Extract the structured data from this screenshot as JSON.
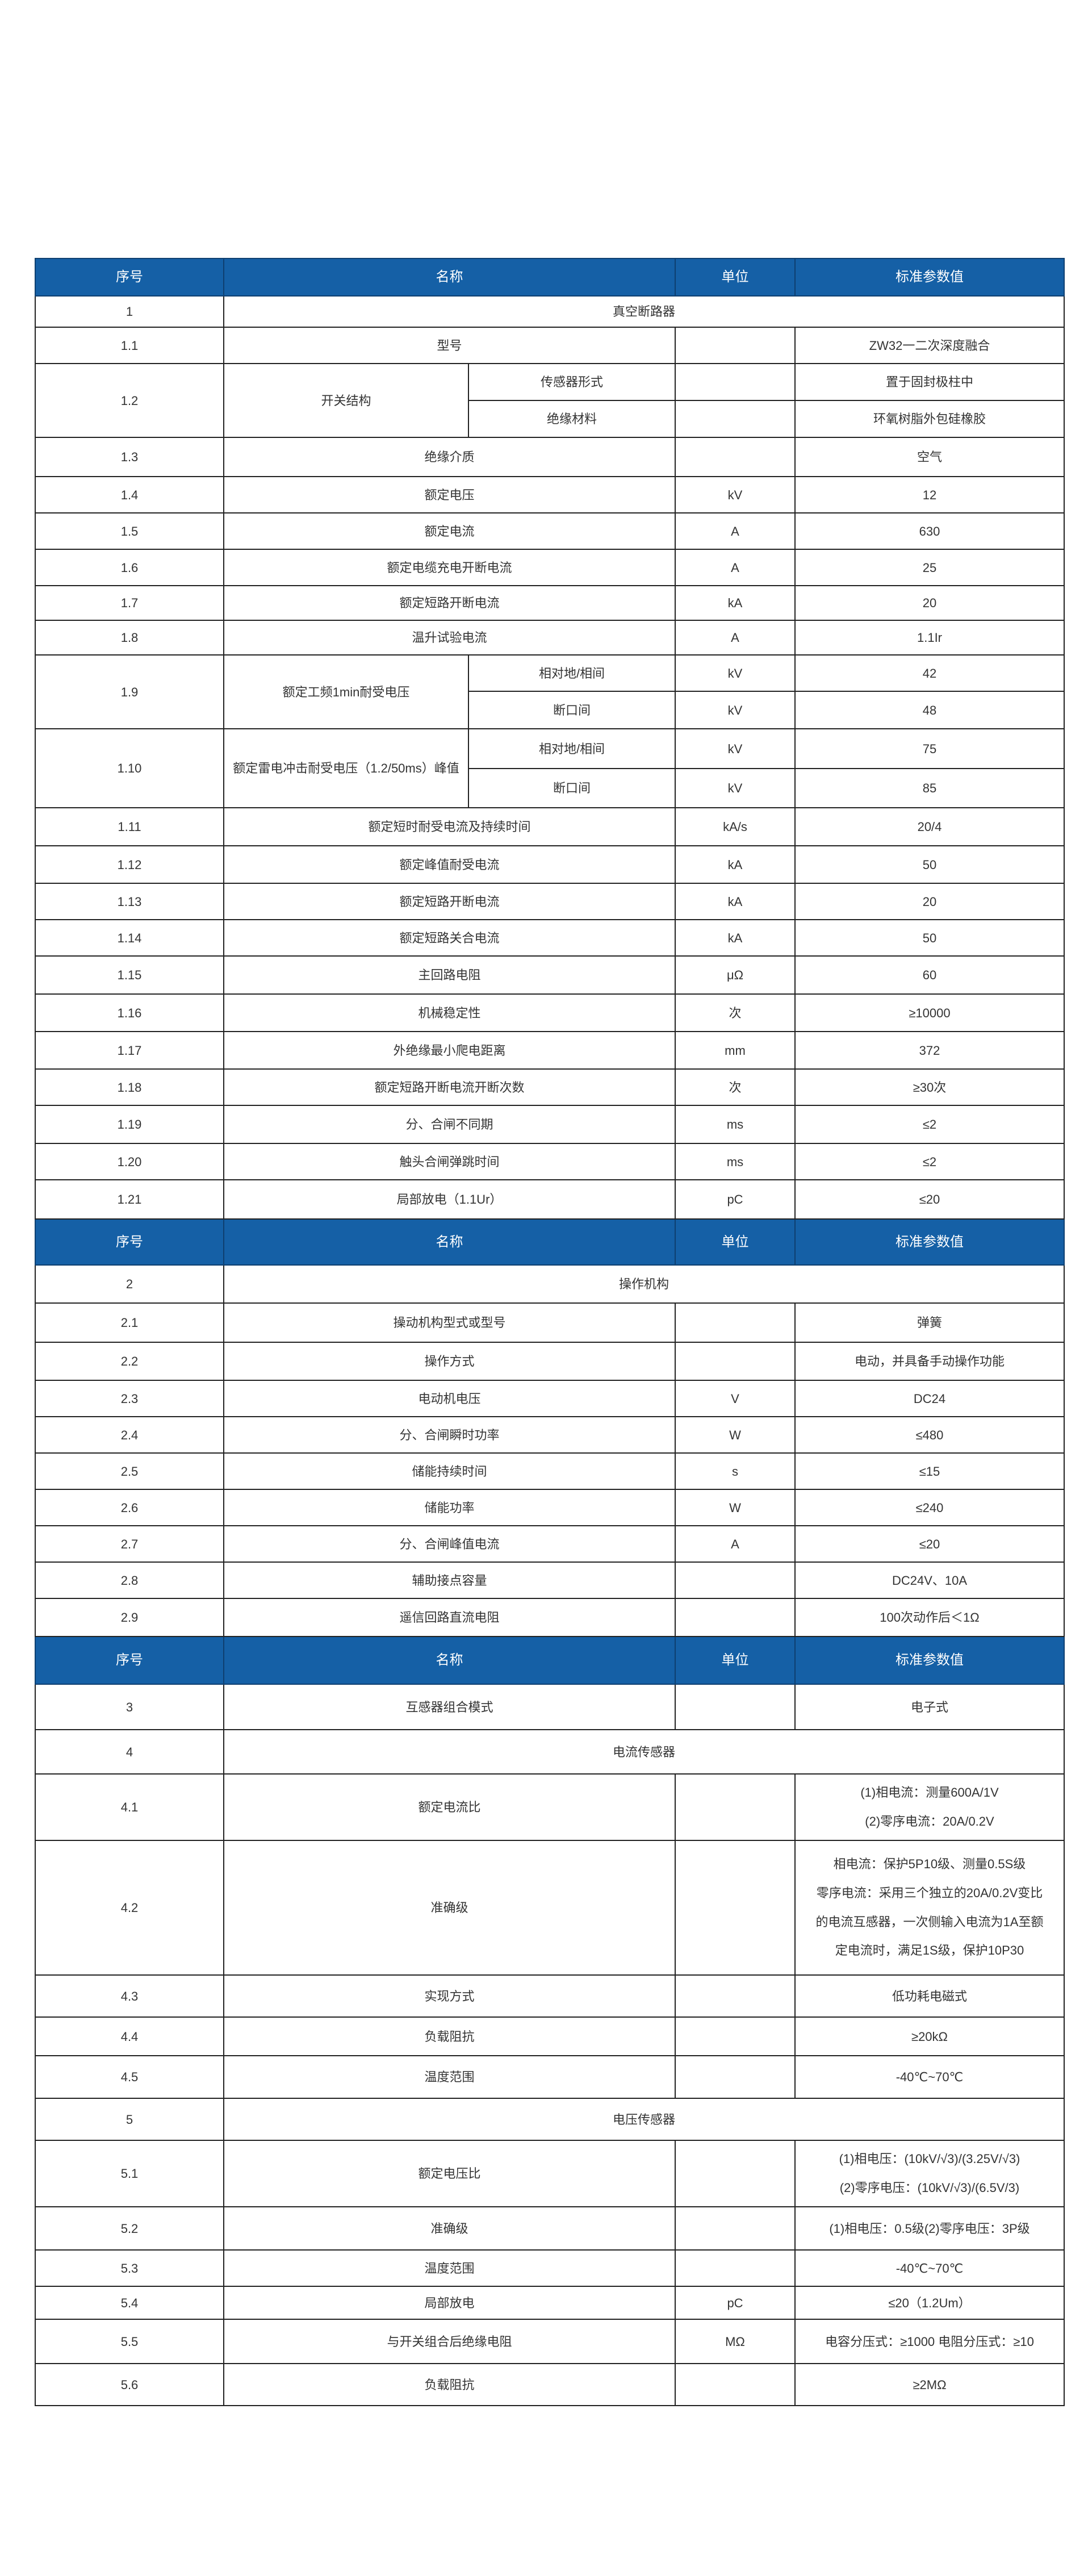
{
  "colors": {
    "header_bg": "#1560a6",
    "header_text": "#ffffff",
    "border": "#222222"
  },
  "rows": [
    {
      "type": "header",
      "no": "序号",
      "name": "名称",
      "unit": "单位",
      "value": "标准参数值"
    },
    {
      "type": "section",
      "no": "1",
      "name": "真空断路器"
    },
    {
      "type": "item",
      "no": "1.1",
      "name": "型号",
      "unit": "",
      "value": "ZW32一二次深度融合"
    },
    {
      "type": "group",
      "no": "1.2",
      "name": "开关结构",
      "subs": [
        {
          "label": "传感器形式",
          "unit": "",
          "value": "置于固封极柱中"
        },
        {
          "label": "绝缘材料",
          "unit": "",
          "value": "环氧树脂外包硅橡胶"
        }
      ]
    },
    {
      "type": "item",
      "no": "1.3",
      "name": "绝缘介质",
      "unit": "",
      "value": "空气"
    },
    {
      "type": "item",
      "no": "1.4",
      "name": "额定电压",
      "unit": "kV",
      "value": "12"
    },
    {
      "type": "item",
      "no": "1.5",
      "name": "额定电流",
      "unit": "A",
      "value": "630"
    },
    {
      "type": "item",
      "no": "1.6",
      "name": "额定电缆充电开断电流",
      "unit": "A",
      "value": "25"
    },
    {
      "type": "item",
      "no": "1.7",
      "name": "额定短路开断电流",
      "unit": "kA",
      "value": "20"
    },
    {
      "type": "item",
      "no": "1.8",
      "name": "温升试验电流",
      "unit": "A",
      "value": "1.1Ir"
    },
    {
      "type": "group",
      "no": "1.9",
      "name": "额定工频1min耐受电压",
      "subs": [
        {
          "label": "相对地/相间",
          "unit": "kV",
          "value": "42"
        },
        {
          "label": "断口间",
          "unit": "kV",
          "value": "48"
        }
      ]
    },
    {
      "type": "group",
      "no": "1.10",
      "name": "额定雷电冲击耐受电压（1.2/50ms）峰值",
      "subs": [
        {
          "label": "相对地/相间",
          "unit": "kV",
          "value": "75"
        },
        {
          "label": "断口间",
          "unit": "kV",
          "value": "85"
        }
      ]
    },
    {
      "type": "item",
      "no": "1.11",
      "name": "额定短时耐受电流及持续时间",
      "unit": "kA/s",
      "value": "20/4"
    },
    {
      "type": "item",
      "no": "1.12",
      "name": "额定峰值耐受电流",
      "unit": "kA",
      "value": "50"
    },
    {
      "type": "item",
      "no": "1.13",
      "name": "额定短路开断电流",
      "unit": "kA",
      "value": "20"
    },
    {
      "type": "item",
      "no": "1.14",
      "name": "额定短路关合电流",
      "unit": "kA",
      "value": "50"
    },
    {
      "type": "item",
      "no": "1.15",
      "name": "主回路电阻",
      "unit": "μΩ",
      "value": "60"
    },
    {
      "type": "item",
      "no": "1.16",
      "name": "机械稳定性",
      "unit": "次",
      "value": "≥10000"
    },
    {
      "type": "item",
      "no": "1.17",
      "name": "外绝缘最小爬电距离",
      "unit": "mm",
      "value": "372"
    },
    {
      "type": "item",
      "no": "1.18",
      "name": "额定短路开断电流开断次数",
      "unit": "次",
      "value": "≥30次"
    },
    {
      "type": "item",
      "no": "1.19",
      "name": "分、合闸不同期",
      "unit": "ms",
      "value": "≤2"
    },
    {
      "type": "item",
      "no": "1.20",
      "name": "触头合闸弹跳时间",
      "unit": "ms",
      "value": "≤2"
    },
    {
      "type": "item",
      "no": "1.21",
      "name": "局部放电（1.1Ur）",
      "unit": "pC",
      "value": "≤20"
    },
    {
      "type": "header",
      "no": "序号",
      "name": "名称",
      "unit": "单位",
      "value": "标准参数值"
    },
    {
      "type": "section",
      "no": "2",
      "name": "操作机构"
    },
    {
      "type": "item",
      "no": "2.1",
      "name": "操动机构型式或型号",
      "unit": "",
      "value": "弹簧"
    },
    {
      "type": "item",
      "no": "2.2",
      "name": "操作方式",
      "unit": "",
      "value": "电动，并具备手动操作功能"
    },
    {
      "type": "item",
      "no": "2.3",
      "name": "电动机电压",
      "unit": "V",
      "value": "DC24"
    },
    {
      "type": "item",
      "no": "2.4",
      "name": "分、合闸瞬时功率",
      "unit": "W",
      "value": "≤480"
    },
    {
      "type": "item",
      "no": "2.5",
      "name": "储能持续时间",
      "unit": "s",
      "value": "≤15"
    },
    {
      "type": "item",
      "no": "2.6",
      "name": "储能功率",
      "unit": "W",
      "value": "≤240"
    },
    {
      "type": "item",
      "no": "2.7",
      "name": "分、合闸峰值电流",
      "unit": "A",
      "value": "≤20"
    },
    {
      "type": "item",
      "no": "2.8",
      "name": "辅助接点容量",
      "unit": "",
      "value": "DC24V、10A"
    },
    {
      "type": "item",
      "no": "2.9",
      "name": "遥信回路直流电阻",
      "unit": "",
      "value": "100次动作后＜1Ω"
    },
    {
      "type": "header",
      "no": "序号",
      "name": "名称",
      "unit": "单位",
      "value": "标准参数值"
    },
    {
      "type": "item",
      "no": "3",
      "name": "互感器组合模式",
      "unit": "",
      "value": "电子式"
    },
    {
      "type": "section",
      "no": "4",
      "name": "电流传感器"
    },
    {
      "type": "item",
      "no": "4.1",
      "name": "额定电流比",
      "unit": "",
      "value": [
        "(1)相电流：测量600A/1V",
        "(2)零序电流：20A/0.2V"
      ]
    },
    {
      "type": "item",
      "no": "4.2",
      "name": "准确级",
      "unit": "",
      "value": [
        "相电流：保护5P10级、测量0.5S级",
        "零序电流：采用三个独立的20A/0.2V变比",
        "的电流互感器，一次侧输入电流为1A至额",
        "定电流时，满足1S级，保护10P30"
      ]
    },
    {
      "type": "item",
      "no": "4.3",
      "name": "实现方式",
      "unit": "",
      "value": "低功耗电磁式"
    },
    {
      "type": "item",
      "no": "4.4",
      "name": "负载阻抗",
      "unit": "",
      "value": "≥20kΩ"
    },
    {
      "type": "item",
      "no": "4.5",
      "name": "温度范围",
      "unit": "",
      "value": "-40℃~70℃"
    },
    {
      "type": "section",
      "no": "5",
      "name": "电压传感器"
    },
    {
      "type": "item",
      "no": "5.1",
      "name": "额定电压比",
      "unit": "",
      "value": [
        "(1)相电压：(10kV/√3)/(3.25V/√3)",
        "(2)零序电压：(10kV/√3)/(6.5V/3)"
      ]
    },
    {
      "type": "item",
      "no": "5.2",
      "name": "准确级",
      "unit": "",
      "value": "(1)相电压：0.5级(2)零序电压：3P级"
    },
    {
      "type": "item",
      "no": "5.3",
      "name": "温度范围",
      "unit": "",
      "value": "-40℃~70℃"
    },
    {
      "type": "item",
      "no": "5.4",
      "name": "局部放电",
      "unit": "pC",
      "value": "≤20（1.2Um）"
    },
    {
      "type": "item",
      "no": "5.5",
      "name": "与开关组合后绝缘电阻",
      "unit": "MΩ",
      "value": "电容分压式：≥1000 电阻分压式：≥10"
    },
    {
      "type": "item",
      "no": "5.6",
      "name": "负载阻抗",
      "unit": "",
      "value": "≥2MΩ"
    }
  ]
}
